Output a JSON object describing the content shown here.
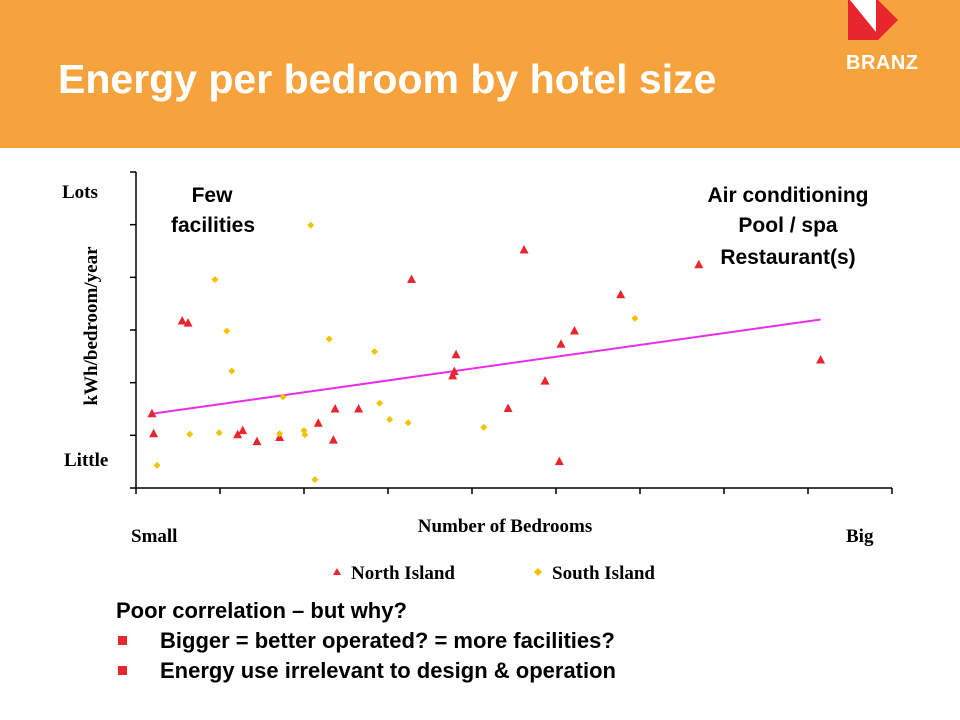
{
  "slide": {
    "title": "Energy per bedroom by hotel size",
    "logo_text": "BRANZ",
    "colors": {
      "header": "#f6a33d",
      "logo_red": "#e8262e",
      "north": "#e8262e",
      "south": "#f2c200",
      "trend": "#e82ee8"
    }
  },
  "chart_data": {
    "type": "scatter",
    "title": "",
    "xlabel": "Number of Bedrooms",
    "ylabel": "kWh/bedroom/year",
    "x_low_label": "Small",
    "x_high_label": "Big",
    "y_high_label": "Lots",
    "y_low_label": "Little",
    "xlim": [
      0,
      9
    ],
    "ylim": [
      0,
      6
    ],
    "grid": false,
    "legend": "bottom",
    "annotations": {
      "left": [
        "Few",
        "facilities"
      ],
      "right": [
        "Air conditioning",
        "Pool / spa",
        "Restaurant(s)"
      ]
    },
    "series": [
      {
        "name": "North Island",
        "marker": "triangle",
        "points": [
          [
            0.19,
            1.41
          ],
          [
            0.21,
            1.03
          ],
          [
            0.55,
            3.17
          ],
          [
            0.62,
            3.13
          ],
          [
            1.21,
            1.01
          ],
          [
            1.27,
            1.09
          ],
          [
            1.44,
            0.88
          ],
          [
            1.71,
            0.96
          ],
          [
            2.17,
            1.23
          ],
          [
            2.35,
            0.91
          ],
          [
            2.37,
            1.5
          ],
          [
            2.65,
            1.5
          ],
          [
            3.28,
            3.96
          ],
          [
            3.77,
            2.13
          ],
          [
            3.79,
            2.21
          ],
          [
            3.81,
            2.53
          ],
          [
            4.43,
            1.51
          ],
          [
            4.62,
            4.52
          ],
          [
            4.87,
            2.03
          ],
          [
            5.04,
            0.5
          ],
          [
            5.06,
            2.73
          ],
          [
            5.22,
            2.98
          ],
          [
            5.77,
            3.67
          ],
          [
            8.15,
            2.43
          ],
          [
            6.7,
            4.24
          ]
        ]
      },
      {
        "name": "South Island",
        "marker": "diamond",
        "points": [
          [
            0.25,
            0.43
          ],
          [
            0.64,
            1.02
          ],
          [
            0.94,
            3.96
          ],
          [
            0.99,
            1.05
          ],
          [
            1.08,
            2.98
          ],
          [
            1.14,
            2.22
          ],
          [
            1.71,
            1.03
          ],
          [
            1.75,
            1.73
          ],
          [
            2.0,
            1.09
          ],
          [
            2.01,
            1.01
          ],
          [
            2.08,
            4.99
          ],
          [
            2.13,
            0.16
          ],
          [
            2.3,
            2.83
          ],
          [
            2.84,
            2.59
          ],
          [
            2.9,
            1.61
          ],
          [
            3.02,
            1.3
          ],
          [
            3.24,
            1.24
          ],
          [
            4.14,
            1.15
          ],
          [
            5.94,
            3.22
          ]
        ]
      }
    ],
    "trendline": {
      "x": [
        0.19,
        8.15
      ],
      "y": [
        1.41,
        3.2
      ]
    }
  },
  "text": {
    "heading": "Poor correlation – but why?",
    "bullets": [
      "Bigger = better operated? = more facilities?",
      "Energy use irrelevant to design & operation"
    ]
  }
}
